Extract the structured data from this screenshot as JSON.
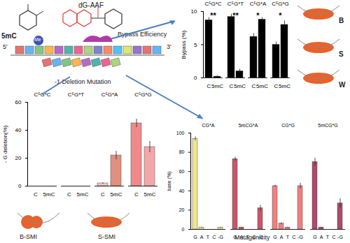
{
  "chart_data": [
    {
      "type": "bar",
      "title": "Bypass Efficiency",
      "y_label": "Bypass (%)",
      "categories": [
        "C",
        "5mC"
      ],
      "ylim": [
        0,
        10
      ],
      "yticks": [
        0,
        5,
        10
      ],
      "color": "#000000",
      "groups": [
        {
          "name": "C⁵G*C",
          "values": [
            8.7,
            0.2
          ],
          "errors": [
            0.4,
            0.1
          ],
          "significance": "**"
        },
        {
          "name": "C⁵G*T",
          "values": [
            9.2,
            1.0
          ],
          "errors": [
            0.4,
            0.3
          ],
          "significance": "**"
        },
        {
          "name": "C⁵G*A",
          "values": [
            6.2,
            8.8
          ],
          "errors": [
            0.5,
            0.3
          ],
          "significance": "*"
        },
        {
          "name": "C⁵G*G",
          "values": [
            5.0,
            8.0
          ],
          "errors": [
            0.4,
            0.6
          ],
          "significance": "*"
        }
      ]
    },
    {
      "type": "bar",
      "title": "-1 Deletion Mutation",
      "y_label": "- G deletion(%)",
      "categories": [
        "C",
        "5mC"
      ],
      "ylim": [
        0,
        60
      ],
      "yticks": [
        0,
        20,
        40,
        60
      ],
      "groups": [
        {
          "name": "C⁵G*C",
          "values": [
            0,
            0
          ],
          "errors": [
            0,
            0
          ],
          "colors": [
            "#f4b6b0",
            "#e89a90"
          ]
        },
        {
          "name": "C⁵G*T",
          "values": [
            0,
            0
          ],
          "errors": [
            0,
            0
          ],
          "colors": [
            "#f4b6b0",
            "#e89a90"
          ]
        },
        {
          "name": "C⁵G*A",
          "values": [
            2,
            22
          ],
          "errors": [
            0.5,
            3
          ],
          "colors": [
            "#f4c6bc",
            "#e0907e"
          ]
        },
        {
          "name": "C⁵G*G",
          "values": [
            45,
            28
          ],
          "errors": [
            3,
            4
          ],
          "colors": [
            "#f08a8a",
            "#f2a8a8"
          ]
        }
      ]
    },
    {
      "type": "bar",
      "title": "Mutagenicity",
      "y_label": "base (%)",
      "categories": [
        "G",
        "A",
        "T",
        "C",
        "-G"
      ],
      "ylim": [
        0,
        100
      ],
      "yticks": [
        0,
        20,
        40,
        60,
        80,
        100
      ],
      "groups": [
        {
          "name": "CG*A",
          "values": [
            94,
            2,
            0,
            0,
            2
          ],
          "errors": [
            2,
            0.5,
            0,
            0,
            0.5
          ],
          "colors": [
            "#f0e68c",
            "#f0e68c",
            "#f0e68c",
            "#f0e68c",
            "#f0e68c"
          ]
        },
        {
          "name": "5mCG*A",
          "values": [
            73,
            2,
            0,
            0,
            22
          ],
          "errors": [
            2,
            0.5,
            0,
            0,
            3
          ],
          "colors": [
            "#c9566a",
            "#c9566a",
            "#c9566a",
            "#c9566a",
            "#c9566a"
          ]
        },
        {
          "name": "CG*G",
          "values": [
            45,
            6,
            2,
            0,
            45
          ],
          "errors": [
            1,
            1,
            0.5,
            0,
            3
          ],
          "colors": [
            "#f08080",
            "#f08080",
            "#f08080",
            "#f08080",
            "#f08080"
          ]
        },
        {
          "name": "5mCG*G",
          "values": [
            70,
            2,
            0,
            0,
            27
          ],
          "errors": [
            4,
            0.5,
            0,
            0,
            5
          ],
          "colors": [
            "#b04a6a",
            "#b04a6a",
            "#b04a6a",
            "#b04a6a",
            "#b04a6a"
          ]
        }
      ]
    }
  ],
  "diagram": {
    "five_mc": "5mC",
    "adduct": "dG-AAF",
    "methyl": "Me",
    "five_prime": "5'",
    "three_prime": "3'",
    "structures": [
      "B",
      "S",
      "W"
    ],
    "smi": [
      "B-SMI",
      "S-SMI"
    ]
  }
}
